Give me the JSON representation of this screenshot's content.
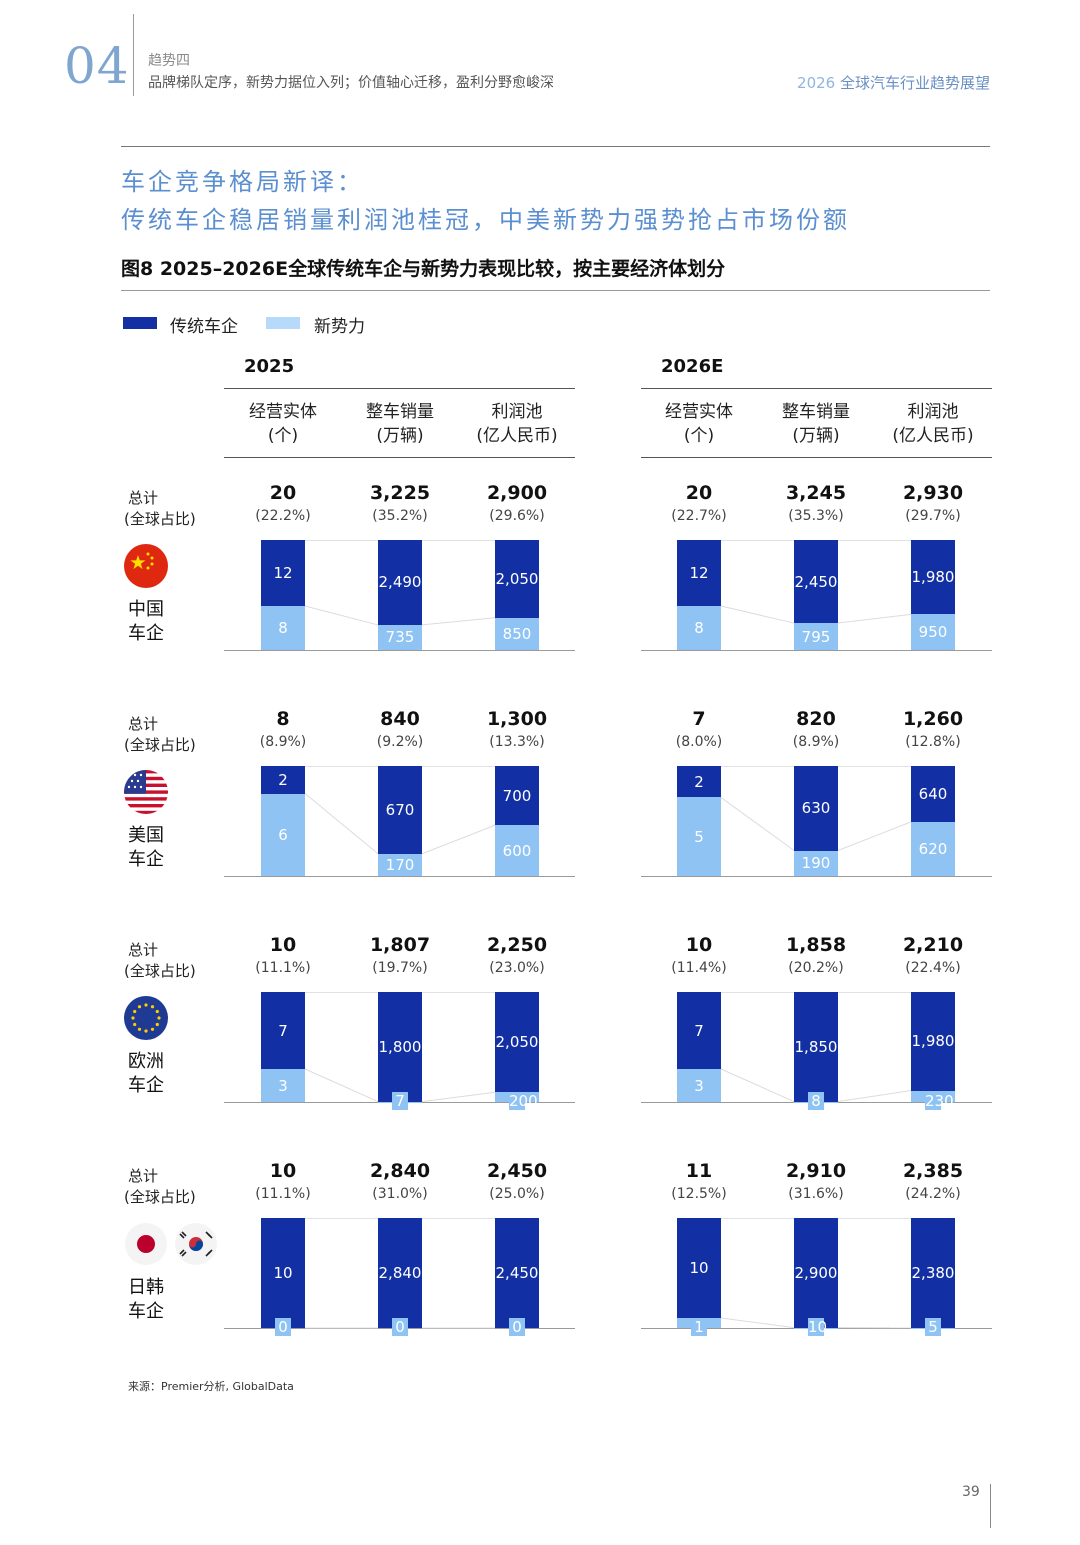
{
  "header": {
    "chapter_number": "04",
    "trend_label": "趋势四",
    "trend_subtitle": "品牌梯队定序，新势力据位入列；价值轴心迁移，盈利分野愈峻深",
    "report_year": "2026",
    "report_title_rest": " 全球汽车行业趋势展望"
  },
  "headline": {
    "line1": "车企竞争格局新译：",
    "line2": "传统车企稳居销量利润池桂冠，中美新势力强势抢占市场份额"
  },
  "figure_title": "图8 2025–2026E全球传统车企与新势力表现比较，按主要经济体划分",
  "legend": {
    "traditional": "传统车企",
    "new": "新势力"
  },
  "colors": {
    "traditional": "#1230a3",
    "new": "#8fc3f3"
  },
  "row_label": {
    "total": "总计",
    "share": "(全球占比)"
  },
  "footer": {
    "source": "来源：Premier分析, GlobalData",
    "page": "39"
  },
  "chart_data": {
    "type": "bar",
    "subtype": "stacked-100-percent",
    "title": "图8 2025–2026E全球传统车企与新势力表现比较，按主要经济体划分",
    "years": [
      "2025",
      "2026E"
    ],
    "metrics": [
      {
        "name": "经营实体",
        "unit": "(个)"
      },
      {
        "name": "整车销量",
        "unit": "(万辆)"
      },
      {
        "name": "利润池",
        "unit": "(亿人民币)"
      }
    ],
    "series": [
      "传统车企",
      "新势力"
    ],
    "regions": [
      {
        "key": "china",
        "name": [
          "中国",
          "车企"
        ],
        "icon": "china-flag-icon",
        "values": {
          "2025": [
            {
              "total": "20",
              "share": "(22.2%)",
              "traditional": 12,
              "new": 8
            },
            {
              "total": "3,225",
              "share": "(35.2%)",
              "traditional": 2490,
              "new": 735
            },
            {
              "total": "2,900",
              "share": "(29.6%)",
              "traditional": 2050,
              "new": 850
            }
          ],
          "2026E": [
            {
              "total": "20",
              "share": "(22.7%)",
              "traditional": 12,
              "new": 8
            },
            {
              "total": "3,245",
              "share": "(35.3%)",
              "traditional": 2450,
              "new": 795
            },
            {
              "total": "2,930",
              "share": "(29.7%)",
              "traditional": 1980,
              "new": 950
            }
          ]
        }
      },
      {
        "key": "us",
        "name": [
          "美国",
          "车企"
        ],
        "icon": "us-flag-icon",
        "values": {
          "2025": [
            {
              "total": "8",
              "share": "(8.9%)",
              "traditional": 2,
              "new": 6
            },
            {
              "total": "840",
              "share": "(9.2%)",
              "traditional": 670,
              "new": 170
            },
            {
              "total": "1,300",
              "share": "(13.3%)",
              "traditional": 700,
              "new": 600
            }
          ],
          "2026E": [
            {
              "total": "7",
              "share": "(8.0%)",
              "traditional": 2,
              "new": 5
            },
            {
              "total": "820",
              "share": "(8.9%)",
              "traditional": 630,
              "new": 190
            },
            {
              "total": "1,260",
              "share": "(12.8%)",
              "traditional": 640,
              "new": 620
            }
          ]
        }
      },
      {
        "key": "eu",
        "name": [
          "欧洲",
          "车企"
        ],
        "icon": "eu-flag-icon",
        "values": {
          "2025": [
            {
              "total": "10",
              "share": "(11.1%)",
              "traditional": 7,
              "new": 3
            },
            {
              "total": "1,807",
              "share": "(19.7%)",
              "traditional": 1800,
              "new": 7
            },
            {
              "total": "2,250",
              "share": "(23.0%)",
              "traditional": 2050,
              "new": 200
            }
          ],
          "2026E": [
            {
              "total": "10",
              "share": "(11.4%)",
              "traditional": 7,
              "new": 3
            },
            {
              "total": "1,858",
              "share": "(20.2%)",
              "traditional": 1850,
              "new": 8
            },
            {
              "total": "2,210",
              "share": "(22.4%)",
              "traditional": 1980,
              "new": 230
            }
          ]
        }
      },
      {
        "key": "jpkr",
        "name": [
          "日韩",
          "车企"
        ],
        "icon": "japan-korea-flags-icon",
        "values": {
          "2025": [
            {
              "total": "10",
              "share": "(11.1%)",
              "traditional": 10,
              "new": 0
            },
            {
              "total": "2,840",
              "share": "(31.0%)",
              "traditional": 2840,
              "new": 0
            },
            {
              "total": "2,450",
              "share": "(25.0%)",
              "traditional": 2450,
              "new": 0
            }
          ],
          "2026E": [
            {
              "total": "11",
              "share": "(12.5%)",
              "traditional": 10,
              "new": 1
            },
            {
              "total": "2,910",
              "share": "(31.6%)",
              "traditional": 2900,
              "new": 10
            },
            {
              "total": "2,385",
              "share": "(24.2%)",
              "traditional": 2380,
              "new": 5
            }
          ]
        }
      }
    ]
  }
}
